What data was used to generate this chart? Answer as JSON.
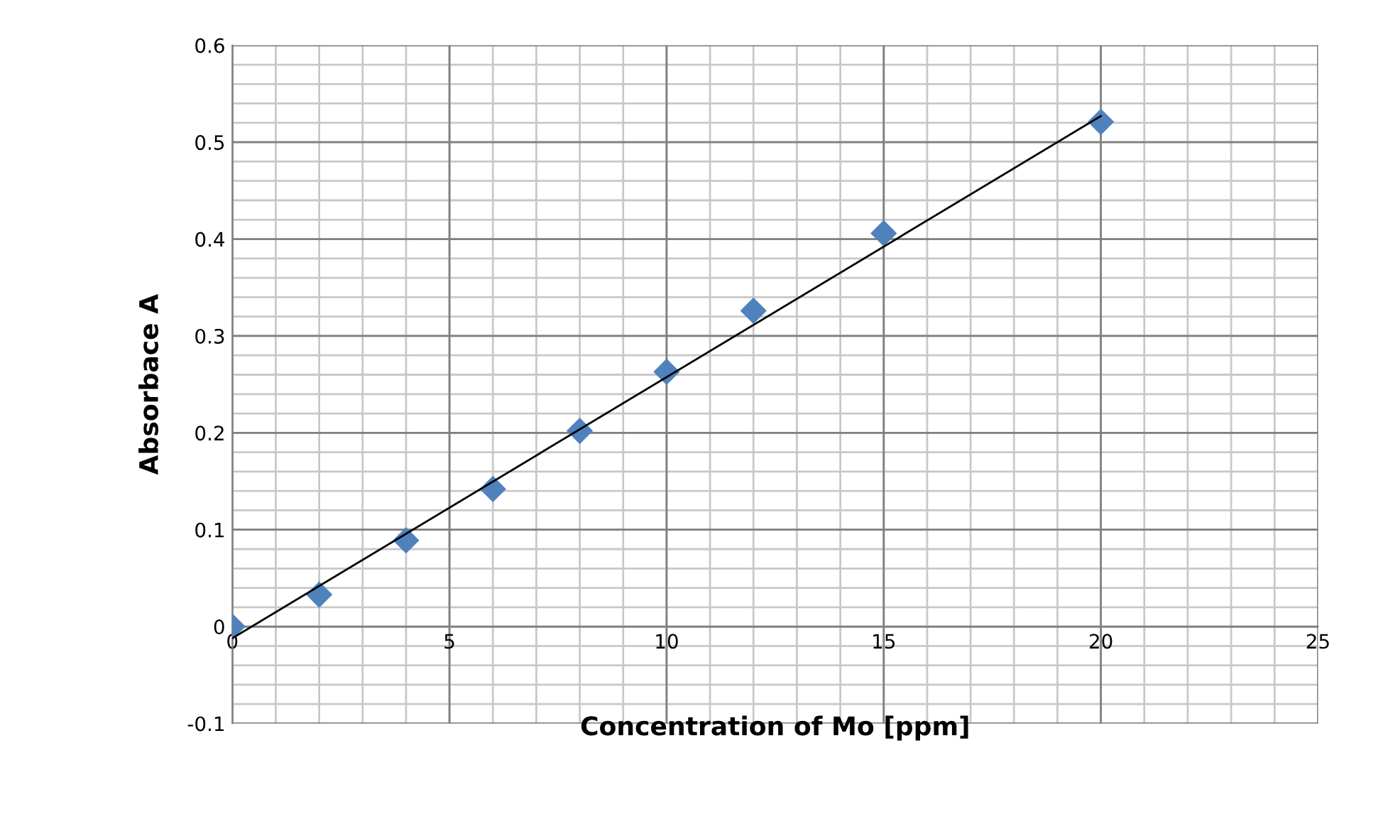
{
  "chart_data": {
    "type": "scatter",
    "xlabel": "Concentration of Mo [ppm]",
    "ylabel": "Absorbace A",
    "series": [
      {
        "color": "#4f81bd",
        "marker": "diamond",
        "x": [
          0,
          2,
          4,
          6,
          8,
          10,
          12,
          15,
          20
        ],
        "values": [
          0,
          0.033,
          0.089,
          0.142,
          0.202,
          0.263,
          0.326,
          0.406,
          0.521
        ]
      },
      {
        "type": "line",
        "color": "#000000",
        "marker": "none",
        "x": [
          0,
          20
        ],
        "values": [
          -0.012,
          0.527
        ]
      }
    ],
    "xlim": [
      0,
      25
    ],
    "xticks": [
      0,
      5,
      10,
      15,
      20,
      25
    ],
    "ylim": [
      -0.1,
      0.6
    ],
    "yticks": [
      -0.1,
      0,
      0.1,
      0.2,
      0.3,
      0.4,
      0.5,
      0.6
    ],
    "grid": true,
    "legend": false
  }
}
